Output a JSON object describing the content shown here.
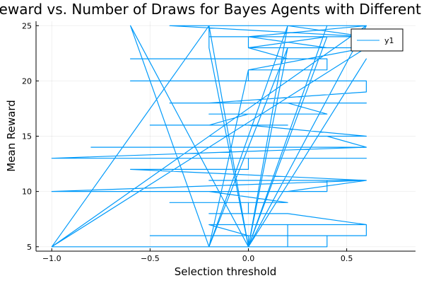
{
  "chart_data": {
    "type": "line",
    "title": "Reward vs. Number of Draws for Bayes Agents with Different T",
    "xlabel": "Selection threshold",
    "ylabel": "Mean Reward",
    "xlim": [
      -1.08,
      0.85
    ],
    "ylim": [
      4.6,
      25.4
    ],
    "xticks": [
      -1.0,
      -0.5,
      0.0,
      0.5
    ],
    "xtick_labels": [
      "−1.0",
      "−0.5",
      "0.0",
      "0.5"
    ],
    "yticks": [
      5,
      10,
      15,
      20,
      25
    ],
    "ytick_labels": [
      "5",
      "10",
      "15",
      "20",
      "25"
    ],
    "grid": true,
    "legend_position": "top-right",
    "series_color": "#009AFA",
    "series": [
      {
        "name": "y1",
        "x": [
          -1.0,
          -0.2,
          0.2,
          0.2,
          0.2,
          0.6,
          0.6,
          0.2,
          -0.5,
          0.4,
          0.4,
          0.0,
          0.0,
          -0.2,
          0.6,
          0.2,
          -0.2,
          0.0,
          0.0,
          -0.4,
          0.2,
          -0.2,
          -0.6,
          0.2,
          0.6,
          -0.2,
          0.2,
          0.4,
          0.4,
          -1.0,
          0.6,
          -0.6,
          0.0,
          0.0,
          -0.2,
          0.6,
          0.4,
          0.0,
          -1.0,
          0.6,
          0.2,
          -0.8,
          0.6,
          0.4,
          -0.2,
          0.6,
          0.0,
          -0.5,
          0.2,
          -0.2,
          0.0,
          -0.2,
          0.4,
          0.2,
          -0.4,
          0.6,
          0.0,
          -0.2,
          0.6,
          0.6,
          -0.6,
          -0.2,
          0.0,
          0.0,
          0.4,
          0.4,
          -0.6,
          0.0,
          0.2,
          0.0,
          0.6,
          0.4,
          0.0,
          -0.2,
          0.6,
          -0.4,
          0.0,
          0.6,
          0.0,
          0.0,
          0.4,
          0.0,
          0.2,
          0.0,
          -0.2,
          -0.2,
          0.6,
          0.0,
          0.0,
          -0.6,
          -0.2,
          0.0,
          0.6,
          -1.0,
          -0.2,
          0.0,
          0.4,
          0.0,
          0.2,
          -0.2,
          0.0,
          0.6,
          0.0,
          0.2,
          0.0,
          -0.2,
          -1.0,
          0.6,
          0.0,
          0.0,
          -0.6,
          -0.2,
          0.2,
          0.6
        ],
        "y": [
          5,
          5,
          5,
          6,
          7,
          7,
          6,
          6,
          6,
          6,
          5,
          5,
          6,
          7,
          7,
          8,
          8,
          8,
          9,
          9,
          9,
          10,
          10,
          10,
          11,
          11,
          11,
          11,
          10,
          10,
          11,
          12,
          12,
          13,
          13,
          13,
          13,
          13,
          13,
          14,
          14,
          14,
          14,
          15,
          15,
          15,
          16,
          16,
          16,
          16,
          17,
          17,
          17,
          18,
          18,
          18,
          18,
          18,
          19,
          20,
          20,
          20,
          20,
          21,
          21,
          22,
          22,
          22,
          22,
          23,
          23,
          23,
          24,
          24,
          24,
          25,
          25,
          25,
          24,
          23,
          24,
          5,
          25,
          5,
          23,
          25,
          25,
          5,
          5,
          25,
          5,
          21,
          23,
          5,
          5,
          5,
          25,
          5,
          23,
          5,
          5,
          22,
          5,
          25,
          5,
          25,
          5,
          25,
          5,
          5,
          25,
          5,
          25,
          24
        ]
      }
    ]
  }
}
